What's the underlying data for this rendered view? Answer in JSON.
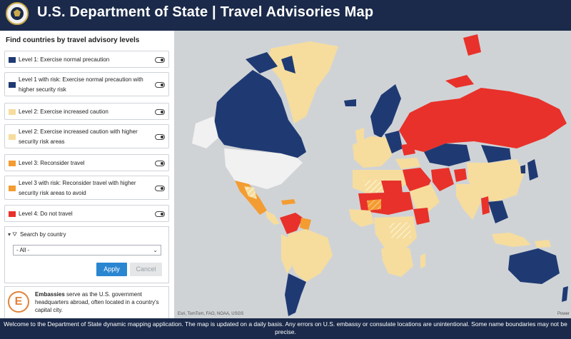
{
  "header": {
    "title": "U.S. Department of State | Travel Advisories Map",
    "seal_icon": "state-department-seal"
  },
  "sidebar": {
    "title": "Find countries by travel advisory levels",
    "levels": [
      {
        "label": "Level 1: Exercise normal precaution",
        "color": "#1f3a73",
        "checked": false
      },
      {
        "label": "Level 1 with risk: Exercise normal precaution with higher security risk",
        "color": "#1f3a73",
        "checked": false
      },
      {
        "label": "Level 2: Exercise increased caution",
        "color": "#f6dd9e",
        "checked": false
      },
      {
        "label": "Level 2: Exercise increased caution with higher security risk areas",
        "color": "#f6dd9e",
        "checked": false
      },
      {
        "label": "Level 3: Reconsider travel",
        "color": "#f39c32",
        "checked": false
      },
      {
        "label": "Level 3 with risk: Reconsider travel with higher security risk areas to avoid",
        "color": "#f39c32",
        "checked": false
      },
      {
        "label": "Level 4: Do not travel",
        "color": "#e8312a",
        "checked": false
      }
    ],
    "search": {
      "title": "Search by country",
      "selected": "- All -",
      "apply_label": "Apply",
      "cancel_label": "Cancel"
    },
    "embassies": {
      "icon_letter": "E",
      "bold": "Embassies",
      "text": " serve as the U.S. government headquarters abroad, often located in a country's capital city."
    }
  },
  "map": {
    "attribution": "Esri, TomTom, FAO, NOAA, USGS",
    "powered": "Power",
    "ocean_color": "#d0d3d6"
  },
  "footer": {
    "text": "Welcome to the Department of State dynamic mapping application. The map is updated on a daily basis.  Any errors on U.S. embassy or consulate locations are unintentional. Some name boundaries may not be precise."
  }
}
